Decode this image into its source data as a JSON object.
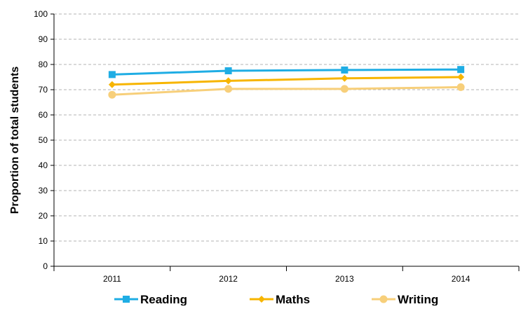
{
  "chart_data": {
    "type": "line",
    "title": "",
    "xlabel": "",
    "ylabel": "Proportion of total students",
    "categories": [
      "2011",
      "2012",
      "2013",
      "2014"
    ],
    "ylim": [
      0,
      100
    ],
    "yticks": [
      0,
      10,
      20,
      30,
      40,
      50,
      60,
      70,
      80,
      90,
      100
    ],
    "grid": "horizontal-dashed",
    "legend": "bottom",
    "series": [
      {
        "name": "Reading",
        "values": [
          76,
          77.5,
          77.8,
          78
        ],
        "color": "#1FADE4",
        "marker": "square"
      },
      {
        "name": "Maths",
        "values": [
          72,
          73.5,
          74.5,
          75
        ],
        "color": "#F7B500",
        "marker": "diamond"
      },
      {
        "name": "Writing",
        "values": [
          68,
          70.3,
          70.3,
          71
        ],
        "color": "#F7CF7A",
        "marker": "circle"
      }
    ]
  }
}
